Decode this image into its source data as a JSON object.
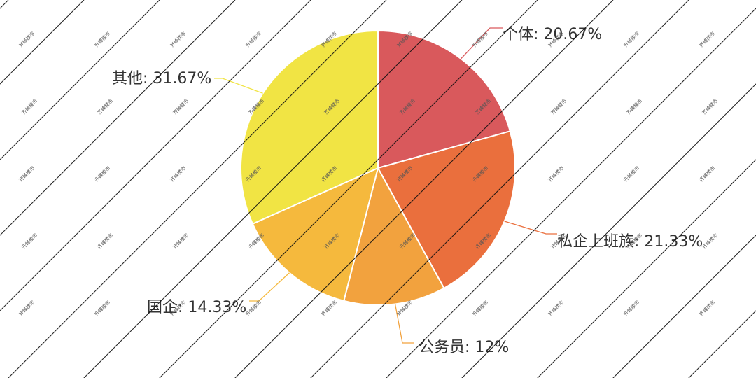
{
  "chart_data": {
    "type": "pie",
    "slices": [
      {
        "label": "个体: 20.67%",
        "value": 20.67,
        "color": "#d9595c"
      },
      {
        "label": "私企上班族: 21.33%",
        "value": 21.33,
        "color": "#ea6f3d"
      },
      {
        "label": "公务员: 12%",
        "value": 12,
        "color": "#f2a23e"
      },
      {
        "label": "国企: 14.33%",
        "value": 14.33,
        "color": "#f5b93d"
      },
      {
        "label": "其他: 31.67%",
        "value": 31.67,
        "color": "#f1e444"
      }
    ],
    "watermark": "齐峰楼市"
  }
}
